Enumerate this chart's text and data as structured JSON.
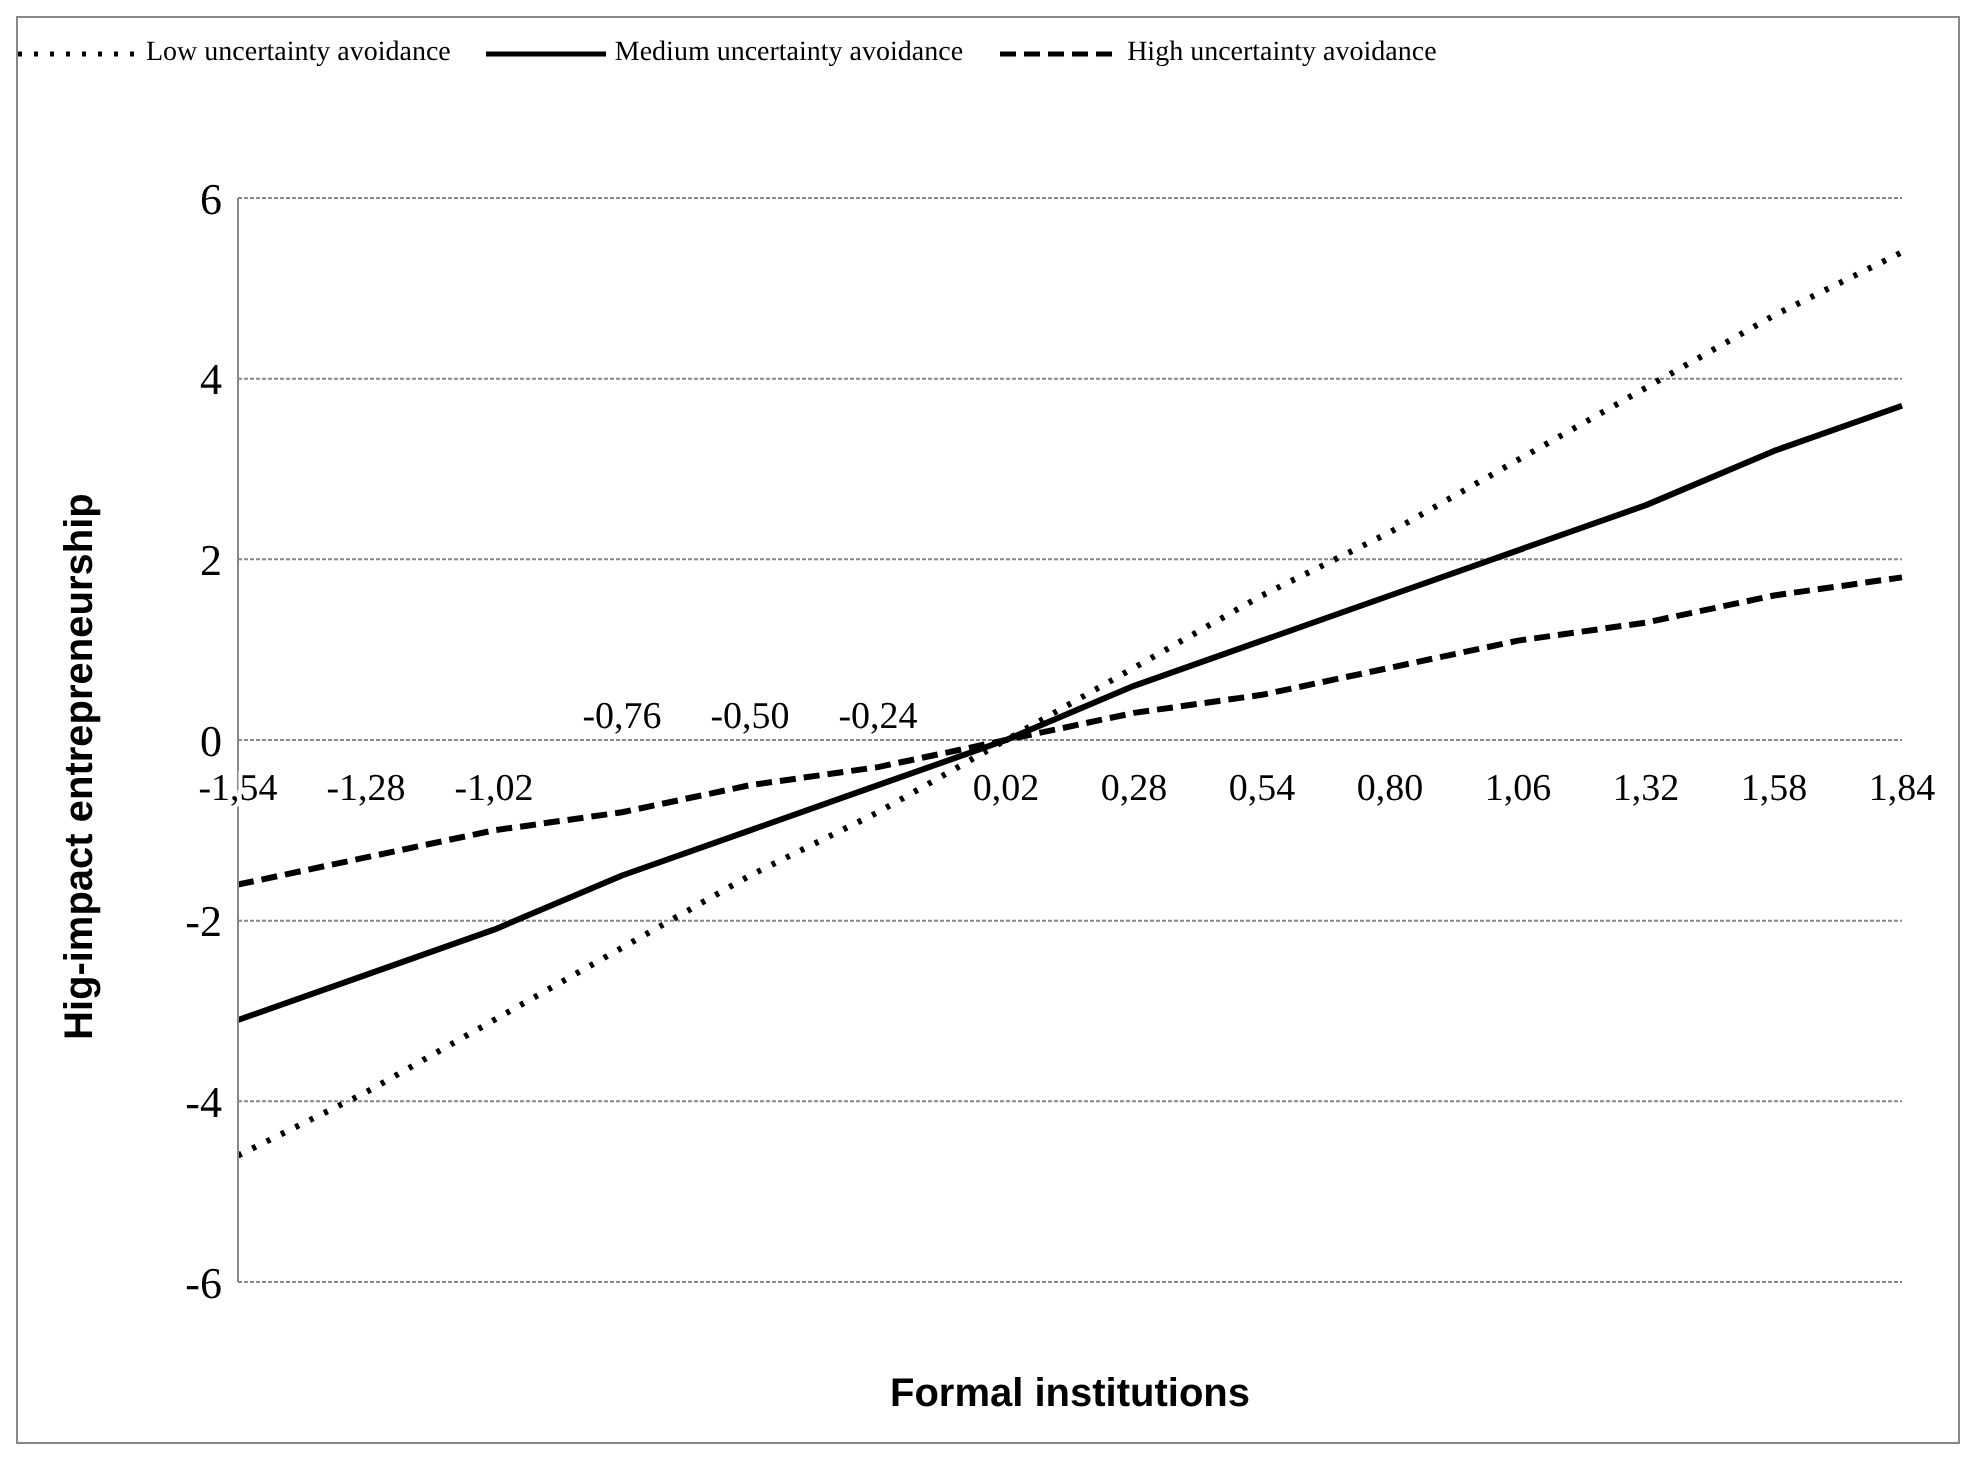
{
  "chart_data": {
    "type": "line",
    "xlabel": "Formal institutions",
    "ylabel": "Hig-impact entrepreneurship",
    "categories": [
      "-1,54",
      "-1,28",
      "-1,02",
      "-0,76",
      "-0,50",
      "-0,24",
      "0,02",
      "0,28",
      "0,54",
      "0,80",
      "1,06",
      "1,32",
      "1,58",
      "1,84"
    ],
    "series": [
      {
        "name": "Low uncertainty avoidance",
        "color": "#000000",
        "line_style": "dotted",
        "values": [
          -4.6,
          -3.9,
          -3.1,
          -2.3,
          -1.5,
          -0.8,
          0.0,
          0.8,
          1.6,
          2.3,
          3.1,
          3.9,
          4.7,
          5.4
        ]
      },
      {
        "name": "Medium uncertainty avoidance",
        "color": "#000000",
        "line_style": "solid",
        "values": [
          -3.1,
          -2.6,
          -2.1,
          -1.5,
          -1.0,
          -0.5,
          0.0,
          0.6,
          1.1,
          1.6,
          2.1,
          2.6,
          3.2,
          3.7
        ]
      },
      {
        "name": "High uncertainty avoidance",
        "color": "#000000",
        "line_style": "dashed",
        "values": [
          -1.6,
          -1.3,
          -1.0,
          -0.8,
          -0.5,
          -0.3,
          0.0,
          0.3,
          0.5,
          0.8,
          1.1,
          1.3,
          1.6,
          1.8
        ]
      }
    ],
    "ylim": [
      -6,
      6
    ],
    "yticks": [
      -6,
      -4,
      -2,
      0,
      2,
      4,
      6
    ],
    "grid": "y",
    "legend": "top",
    "marker": "none"
  }
}
